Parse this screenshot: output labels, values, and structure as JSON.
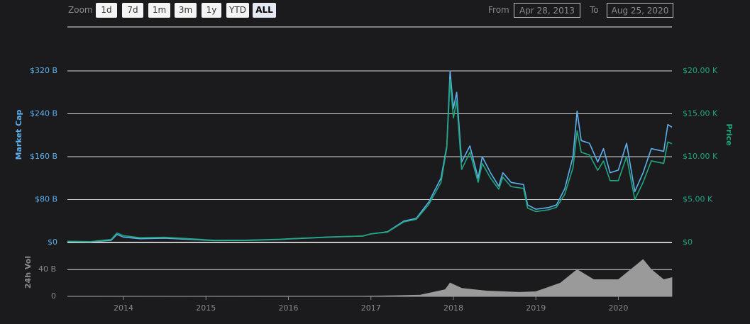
{
  "controls": {
    "zoom_label": "Zoom",
    "buttons": [
      "1d",
      "7d",
      "1m",
      "3m",
      "1y",
      "YTD",
      "ALL"
    ],
    "selected": "ALL",
    "from_label": "From",
    "from": "Apr 28, 2013",
    "to_label": "To",
    "to": "Aug 25, 2020"
  },
  "chart_data": [
    {
      "type": "line",
      "x": [
        2013.32,
        2013.6,
        2013.85,
        2013.92,
        2014.0,
        2014.2,
        2014.5,
        2014.9,
        2015.1,
        2015.5,
        2015.9,
        2016.0,
        2016.5,
        2016.9,
        2017.0,
        2017.2,
        2017.4,
        2017.55,
        2017.7,
        2017.85,
        2017.92,
        2017.96,
        2018.0,
        2018.04,
        2018.1,
        2018.2,
        2018.3,
        2018.35,
        2018.45,
        2018.55,
        2018.6,
        2018.7,
        2018.85,
        2018.9,
        2019.0,
        2019.15,
        2019.25,
        2019.35,
        2019.45,
        2019.5,
        2019.55,
        2019.65,
        2019.75,
        2019.82,
        2019.9,
        2020.0,
        2020.1,
        2020.2,
        2020.3,
        2020.4,
        2020.55,
        2020.6,
        2020.65
      ],
      "series": [
        {
          "name": "Market Cap",
          "color": "#5cb0ee",
          "values": [
            1.5,
            1.2,
            4,
            15,
            10,
            7,
            8,
            5,
            3.5,
            3.8,
            5.5,
            6.5,
            10,
            12,
            16,
            20,
            40,
            45,
            75,
            120,
            180,
            320,
            250,
            280,
            150,
            180,
            120,
            160,
            130,
            105,
            130,
            112,
            108,
            70,
            62,
            65,
            70,
            100,
            160,
            245,
            190,
            185,
            150,
            175,
            130,
            135,
            185,
            95,
            130,
            175,
            170,
            220,
            215
          ]
        },
        {
          "name": "Price",
          "color": "#1ea67c",
          "axis": "y2",
          "values": [
            0.14,
            0.1,
            0.35,
            1.1,
            0.8,
            0.55,
            0.6,
            0.38,
            0.25,
            0.27,
            0.38,
            0.43,
            0.65,
            0.75,
            1.0,
            1.2,
            2.4,
            2.7,
            4.4,
            7.0,
            11,
            19.0,
            14.5,
            16.5,
            8.5,
            10.5,
            7.0,
            9.2,
            7.5,
            6.2,
            7.6,
            6.5,
            6.3,
            4.0,
            3.6,
            3.8,
            4.1,
            5.6,
            8.7,
            13.0,
            10.5,
            10.2,
            8.4,
            9.5,
            7.2,
            7.2,
            10.0,
            5.0,
            7.0,
            9.5,
            9.2,
            11.7,
            11.5
          ]
        }
      ],
      "xlim": [
        2013.32,
        2020.65
      ],
      "ylim": [
        0,
        402
      ],
      "yticks": [
        {
          "value": 0,
          "label": "$0"
        },
        {
          "value": 80,
          "label": "$80 B"
        },
        {
          "value": 160,
          "label": "$160 B"
        },
        {
          "value": 240,
          "label": "$240 B"
        },
        {
          "value": 320,
          "label": "$320 B"
        }
      ],
      "y2lim": [
        0,
        25.1
      ],
      "y2ticks": [
        {
          "value": 0,
          "label": "$0"
        },
        {
          "value": 5,
          "label": "$5.00 K"
        },
        {
          "value": 10,
          "label": "$10.00 K"
        },
        {
          "value": 15,
          "label": "$15.00 K"
        },
        {
          "value": 20,
          "label": "$20.00 K"
        }
      ],
      "grid": true
    },
    {
      "type": "area",
      "y_label": "24h Vol",
      "color": "#9a9a9a",
      "x": [
        2013.32,
        2016.9,
        2017.3,
        2017.6,
        2017.9,
        2017.96,
        2018.1,
        2018.4,
        2018.8,
        2019.0,
        2019.3,
        2019.5,
        2019.7,
        2020.0,
        2020.2,
        2020.3,
        2020.4,
        2020.55,
        2020.65
      ],
      "values": [
        0,
        0.3,
        1,
        2,
        10,
        20,
        12,
        8,
        6,
        7,
        20,
        40,
        25,
        25,
        45,
        55,
        40,
        25,
        28
      ],
      "xlim": [
        2013.32,
        2020.65
      ],
      "ylim": [
        0,
        72
      ],
      "yticks": [
        0,
        {
          "value": 40,
          "label": "40 B"
        }
      ],
      "xticks": [
        2014,
        2015,
        2016,
        2017,
        2018,
        2019,
        2020
      ],
      "grid": true
    }
  ]
}
